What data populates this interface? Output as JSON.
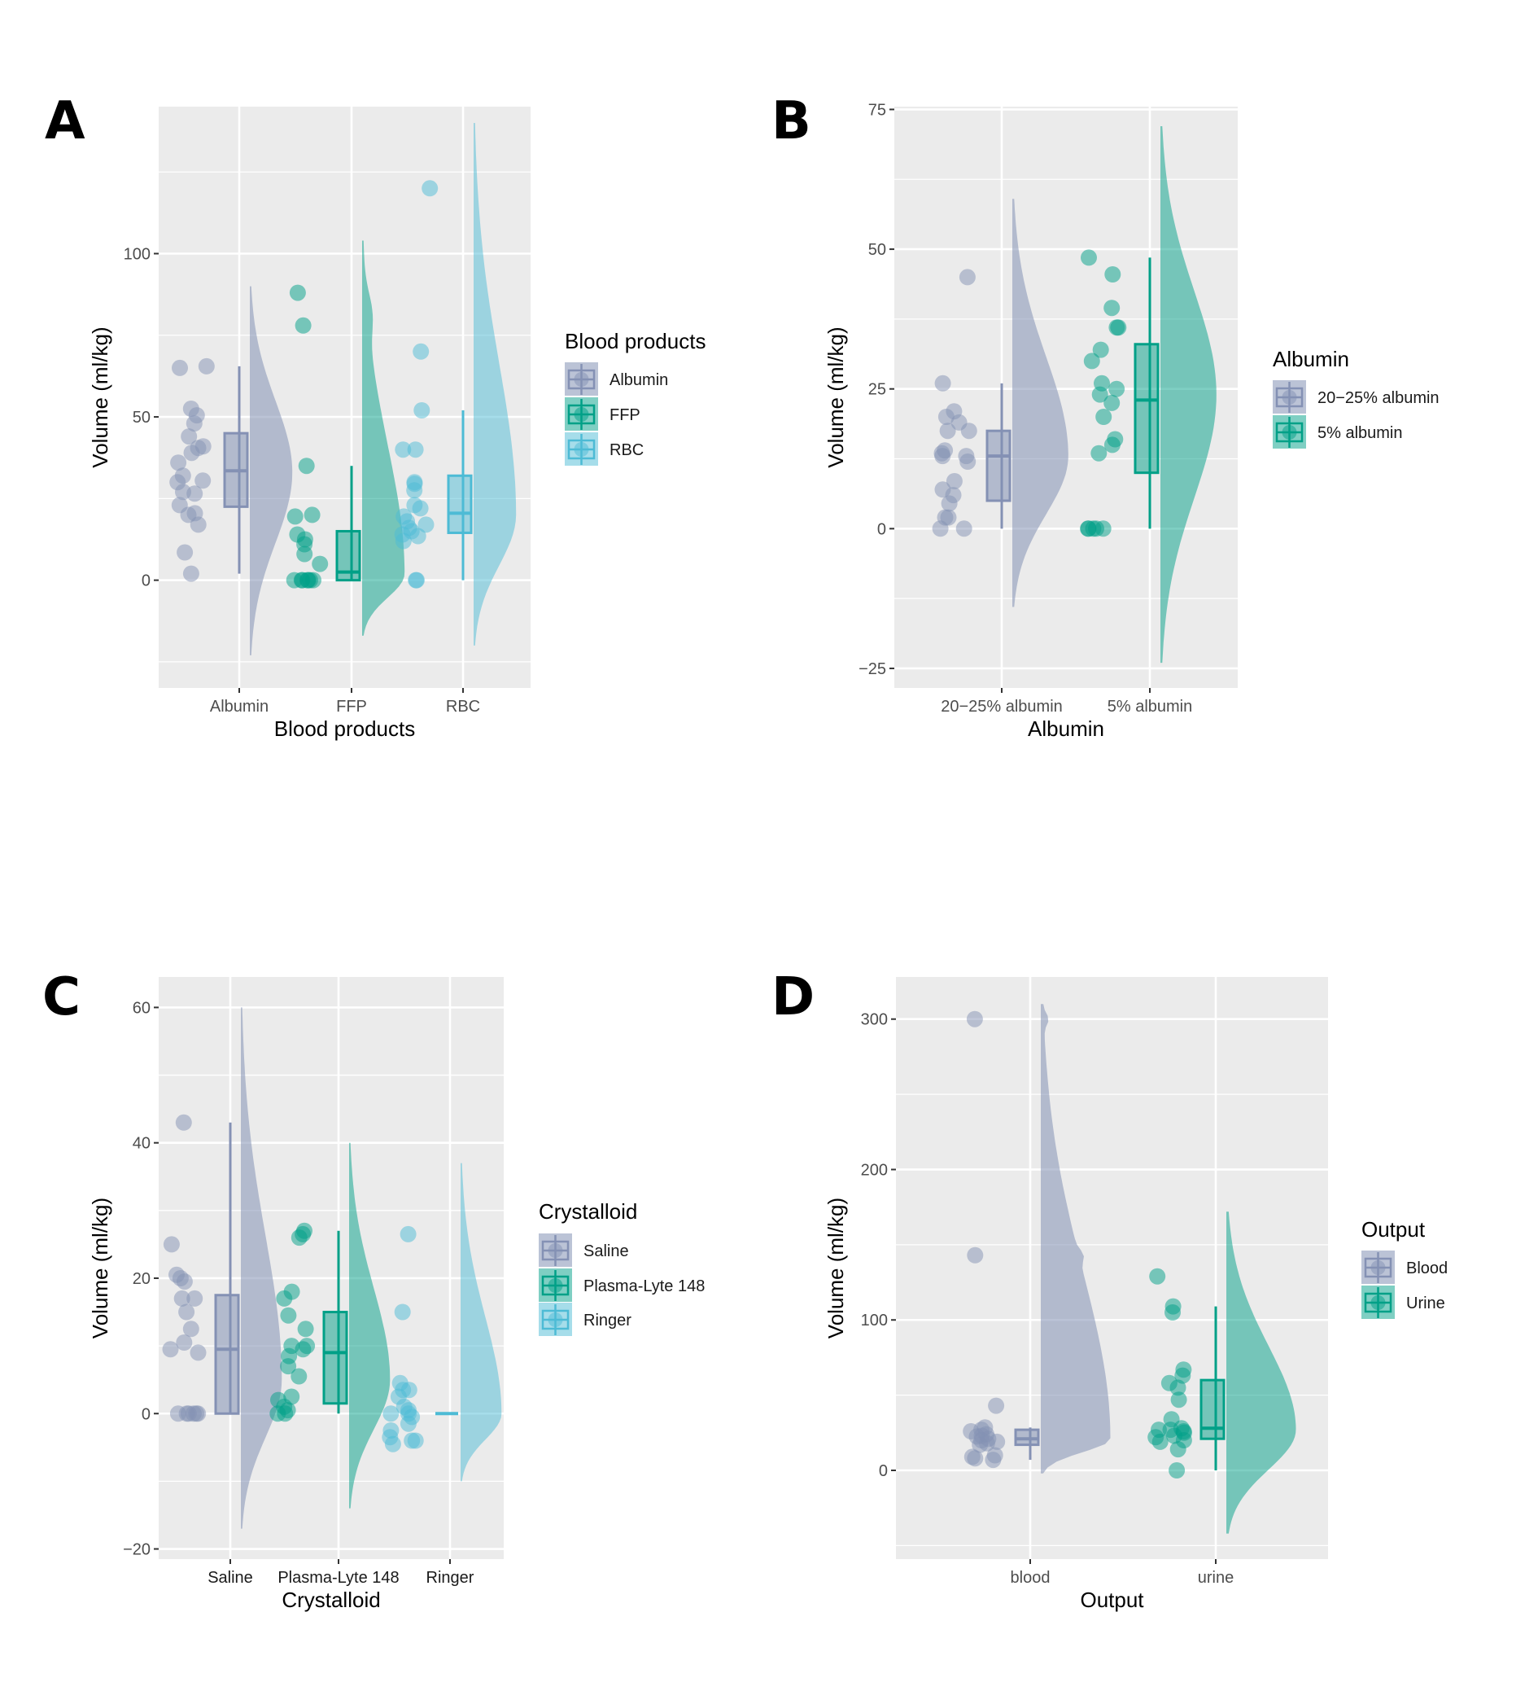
{
  "figure": {
    "colors": {
      "panel_bg": "#EBEBEB",
      "grid": "#FFFFFF",
      "slate": "#8491B4",
      "teal": "#00A087",
      "sky": "#4DBBD5"
    }
  },
  "chart_data": [
    {
      "panel": "A",
      "type": "raincloud",
      "title": "",
      "xlabel": "Blood products",
      "ylabel": "Volume (ml/kg)",
      "ylim": [
        -33,
        145
      ],
      "yticks": [
        0,
        50,
        100
      ],
      "ytick_labels": [
        "0",
        "50",
        "100"
      ],
      "minor_yticks": [
        -25,
        25,
        75,
        125
      ],
      "grid": true,
      "categories": [
        "Albumin",
        "FFP",
        "RBC"
      ],
      "legend": {
        "title": "Blood products",
        "placement": "right",
        "entries": [
          "Albumin",
          "FFP",
          "RBC"
        ]
      },
      "series": [
        {
          "name": "Albumin",
          "color": "slate",
          "points": [
            65,
            65.5,
            52.5,
            50.5,
            48,
            44,
            41,
            40.5,
            39,
            36,
            32,
            30.5,
            30,
            27,
            26.5,
            23,
            20.5,
            20,
            17,
            8.5,
            2
          ],
          "box": {
            "min": 2,
            "q1": 22.5,
            "median": 33.5,
            "q3": 45,
            "max": 65.5
          },
          "density_range": [
            -23,
            90
          ],
          "density_peak": 33
        },
        {
          "name": "FFP",
          "color": "teal",
          "points": [
            88,
            78,
            35,
            20,
            19.5,
            14,
            12.5,
            11,
            8,
            5,
            0,
            0,
            0,
            0,
            0,
            0,
            0
          ],
          "box": {
            "min": 0,
            "q1": 0,
            "median": 2.5,
            "q3": 15,
            "max": 35
          },
          "density_range": [
            -17,
            104
          ],
          "density_peak": 2,
          "density_secondary_peak": 82
        },
        {
          "name": "RBC",
          "color": "sky",
          "points": [
            120,
            70,
            52,
            40,
            40,
            30,
            29.5,
            27.5,
            23,
            22,
            19.5,
            18,
            17,
            16,
            15,
            14,
            13.5,
            12,
            0,
            0
          ],
          "box": {
            "min": 0,
            "q1": 14.5,
            "median": 20.5,
            "q3": 32,
            "max": 52
          },
          "density_range": [
            -20,
            140
          ],
          "density_peak": 20
        }
      ]
    },
    {
      "panel": "B",
      "type": "raincloud",
      "title": "",
      "xlabel": "Albumin",
      "ylabel": "Volume (ml/kg)",
      "ylim": [
        -28.5,
        75.5
      ],
      "yticks": [
        -25,
        0,
        25,
        50,
        75
      ],
      "ytick_labels": [
        "−25",
        "0",
        "25",
        "50",
        "75"
      ],
      "minor_yticks": [
        -12.5,
        12.5,
        37.5,
        62.5
      ],
      "grid": true,
      "categories": [
        "20−25% albumin",
        "5% albumin"
      ],
      "legend": {
        "title": "Albumin",
        "placement": "right",
        "entries": [
          "20−25% albumin",
          "5% albumin"
        ]
      },
      "series": [
        {
          "name": "20−25% albumin",
          "color": "slate",
          "points": [
            45,
            26,
            21,
            20,
            19,
            17.5,
            17.5,
            14,
            13.5,
            13,
            13,
            12,
            8.5,
            7,
            6,
            4.5,
            2,
            2,
            0,
            0
          ],
          "box": {
            "min": 0,
            "q1": 5,
            "median": 13,
            "q3": 17.5,
            "max": 26
          },
          "density_range": [
            -14,
            59
          ],
          "density_peak": 13
        },
        {
          "name": "5% albumin",
          "color": "teal",
          "points": [
            48.5,
            45.5,
            39.5,
            36,
            36,
            32,
            30,
            26,
            25,
            24,
            22.5,
            20,
            16,
            15,
            13.5,
            0,
            0,
            0,
            0,
            0
          ],
          "box": {
            "min": 0,
            "q1": 10,
            "median": 23,
            "q3": 33,
            "max": 48.5
          },
          "density_range": [
            -24,
            72
          ],
          "density_peak": 24
        }
      ]
    },
    {
      "panel": "C",
      "type": "raincloud",
      "title": "",
      "xlabel": "Crystalloid",
      "ylabel": "Volume (ml/kg)",
      "ylim": [
        -21.5,
        64.5
      ],
      "yticks": [
        -20,
        0,
        20,
        40,
        60
      ],
      "ytick_labels": [
        "−20",
        "0",
        "20",
        "40",
        "60"
      ],
      "minor_yticks": [
        -10,
        10,
        30,
        50
      ],
      "grid": true,
      "categories": [
        "Saline",
        "Plasma-Lyte 148",
        "Ringer"
      ],
      "legend": {
        "title": "Crystalloid",
        "placement": "right",
        "entries": [
          "Saline",
          "Plasma-Lyte 148",
          "Ringer"
        ]
      },
      "series": [
        {
          "name": "Saline",
          "color": "slate",
          "points": [
            43,
            25,
            20.5,
            20,
            19.5,
            17,
            17,
            15,
            12.5,
            10.5,
            9.5,
            9,
            0,
            0,
            0,
            0,
            0,
            0
          ],
          "box": {
            "min": 0,
            "q1": 0,
            "median": 9.5,
            "q3": 17.5,
            "max": 43
          },
          "density_range": [
            -17,
            60
          ],
          "density_peak": 5
        },
        {
          "name": "Plasma-Lyte 148",
          "color": "teal",
          "points": [
            27,
            26,
            26.5,
            18,
            17,
            14.5,
            12.5,
            10,
            10,
            9.5,
            8.5,
            7,
            5.5,
            2.5,
            2,
            1,
            0.5,
            0,
            0
          ],
          "box": {
            "min": 0,
            "q1": 1.5,
            "median": 9,
            "q3": 15,
            "max": 27
          },
          "density_range": [
            -14,
            40
          ],
          "density_peak": 5
        },
        {
          "name": "Ringer",
          "color": "sky",
          "points": [
            26.5,
            15,
            4.5,
            3.5,
            3.5,
            2.5,
            1,
            0.5,
            0,
            0,
            -0.5,
            -1.5,
            -2.5,
            -3.5,
            -4,
            -4,
            -4.5
          ],
          "box": {
            "min": 0,
            "q1": 0,
            "median": 0,
            "q3": 0,
            "max": 0
          },
          "density_range": [
            -10,
            37
          ],
          "density_peak": 0
        }
      ]
    },
    {
      "panel": "D",
      "type": "raincloud",
      "title": "",
      "xlabel": "Output",
      "ylabel": "Volume (ml/kg)",
      "ylim": [
        -59,
        328
      ],
      "yticks": [
        0,
        100,
        200,
        300
      ],
      "ytick_labels": [
        "0",
        "100",
        "200",
        "300"
      ],
      "minor_yticks": [
        -50,
        50,
        150,
        250
      ],
      "grid": true,
      "categories": [
        "blood",
        "urine"
      ],
      "legend": {
        "title": "Output",
        "placement": "right",
        "entries": [
          "Blood",
          "Urine"
        ]
      },
      "series": [
        {
          "name": "Blood",
          "color": "slate",
          "points": [
            300,
            143,
            43,
            28.5,
            27,
            26,
            24,
            23,
            22.5,
            21,
            20,
            19,
            18,
            17,
            10,
            9,
            8,
            7
          ],
          "box": {
            "min": 7,
            "q1": 17,
            "median": 21,
            "q3": 27,
            "max": 28.5
          },
          "density_range": [
            -2,
            310
          ],
          "density_peak": 21,
          "density_bumps": [
            143,
            300
          ]
        },
        {
          "name": "Urine",
          "color": "sky_teal",
          "points": [
            129,
            109,
            105,
            67,
            63,
            58,
            55,
            47,
            34,
            28,
            27,
            27,
            26,
            25,
            23,
            22,
            20,
            19,
            14,
            0
          ],
          "box": {
            "min": 0,
            "q1": 21,
            "median": 28,
            "q3": 60,
            "max": 109
          },
          "density_range": [
            -42,
            172
          ],
          "density_peak": 27
        }
      ]
    }
  ],
  "panels": [
    {
      "letter": "A"
    },
    {
      "letter": "B"
    },
    {
      "letter": "C"
    },
    {
      "letter": "D"
    }
  ]
}
